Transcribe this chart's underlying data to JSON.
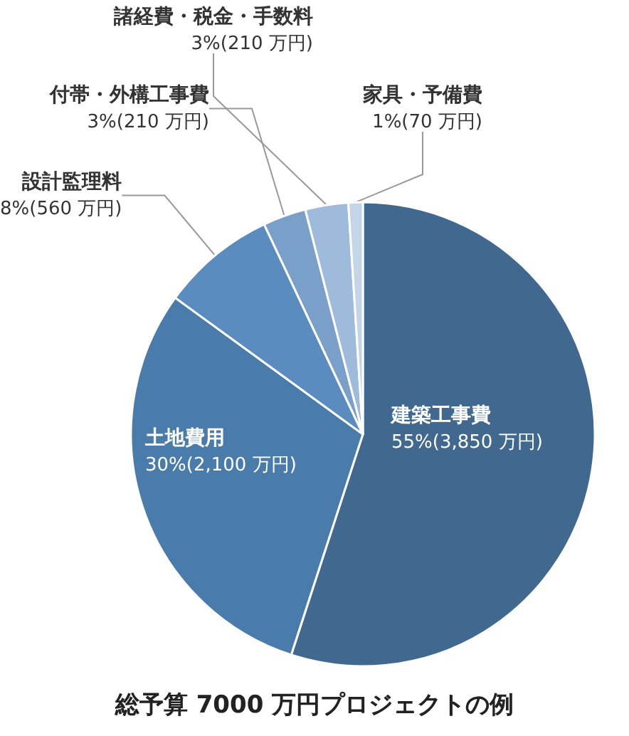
{
  "chart_data": {
    "type": "pie",
    "title": "総予算 7000 万円プロジェクトの例",
    "categories": [
      "建築工事費",
      "土地費用",
      "設計監理料",
      "付帯・外構工事費",
      "諸経費・税金・手数料",
      "家具・予備費"
    ],
    "values": [
      3850,
      2100,
      560,
      210,
      210,
      70
    ],
    "value_labels": [
      "55%(3,850 万円)",
      "30%(2,100 万円)",
      "8%(560 万円)",
      "3%(210 万円)",
      "3%(210 万円)",
      "1%(70 万円)"
    ],
    "colors": [
      "#41698f",
      "#4a7cab",
      "#5a8cbf",
      "#7aa0ca",
      "#9fbbdb",
      "#c5d5e8"
    ],
    "legend": false
  }
}
